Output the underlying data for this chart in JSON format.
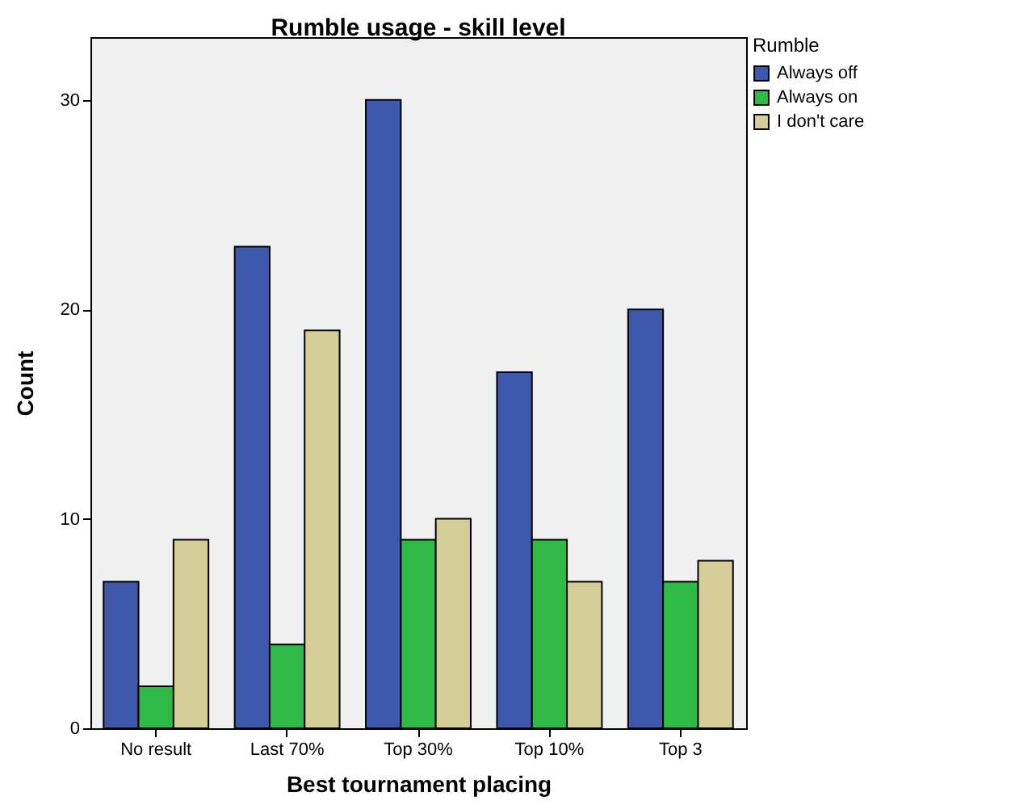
{
  "chart_data": {
    "type": "bar",
    "title": "Rumble usage - skill level",
    "xlabel": "Best tournament placing",
    "ylabel": "Count",
    "legend_title": "Rumble",
    "categories": [
      "No result",
      "Last 70%",
      "Top 30%",
      "Top 10%",
      "Top 3"
    ],
    "series": [
      {
        "name": "Always off",
        "color": "#3e58ac",
        "values": [
          7,
          23,
          30,
          17,
          20
        ]
      },
      {
        "name": "Always on",
        "color": "#2fba47",
        "values": [
          2,
          4,
          9,
          9,
          7
        ]
      },
      {
        "name": "I don't care",
        "color": "#d5cd97",
        "values": [
          9,
          19,
          10,
          7,
          8
        ]
      }
    ],
    "ylim": [
      0,
      33
    ],
    "yticks": [
      0,
      10,
      20,
      30
    ],
    "grid": false,
    "legend": "top right"
  }
}
